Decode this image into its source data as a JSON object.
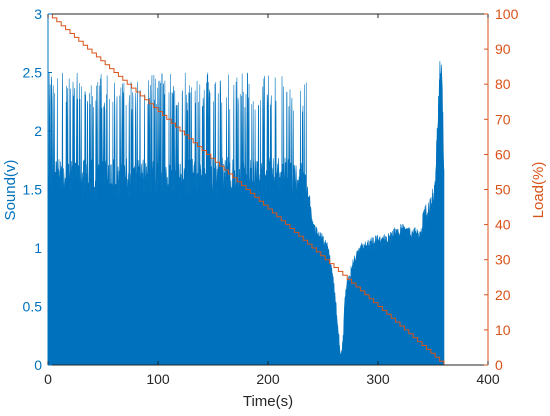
{
  "chart_data": {
    "type": "area",
    "xlabel": "Time(s)",
    "ylabel_left": "Sound(v)",
    "ylabel_right": "Load(%)",
    "xlim": [
      0,
      400
    ],
    "ylim_left": [
      0,
      3
    ],
    "ylim_right": [
      0,
      100
    ],
    "xticks": [
      "0",
      "100",
      "200",
      "300",
      "400"
    ],
    "yticks_left": [
      "0",
      "0.5",
      "1",
      "1.5",
      "2",
      "2.5",
      "3"
    ],
    "yticks_right": [
      "0",
      "10",
      "20",
      "30",
      "40",
      "50",
      "60",
      "70",
      "80",
      "90",
      "100"
    ],
    "grid": false,
    "colors": {
      "sound": "#0072BD",
      "load": "#D95319",
      "axis": "#262626"
    },
    "series": [
      {
        "axis": "left",
        "style": "filled-signal",
        "envelope": {
          "x": [
            0,
            5,
            10,
            20,
            40,
            60,
            80,
            100,
            120,
            140,
            160,
            180,
            200,
            220,
            230,
            234,
            236,
            238,
            240,
            245,
            250,
            255,
            260,
            263,
            266,
            268,
            270,
            272,
            274,
            276,
            278,
            280,
            285,
            290,
            300,
            310,
            320,
            330,
            340,
            345,
            348,
            350,
            352,
            354,
            356,
            358,
            360
          ],
          "y": [
            1.8,
            1.78,
            1.76,
            1.76,
            1.76,
            1.76,
            1.77,
            1.77,
            1.77,
            1.78,
            1.78,
            1.78,
            1.78,
            1.77,
            1.73,
            1.68,
            1.55,
            1.45,
            1.25,
            1.18,
            1.12,
            1.03,
            0.72,
            0.42,
            0.1,
            0.22,
            0.65,
            0.75,
            0.78,
            0.9,
            0.93,
            0.98,
            1.05,
            1.08,
            1.12,
            1.13,
            1.22,
            1.18,
            1.18,
            1.25,
            1.32,
            1.4,
            1.55,
            1.98,
            2.45,
            2.5,
            1.65
          ]
        },
        "peaks": {
          "x_range": [
            0,
            236
          ],
          "y_max": 2.5
        }
      },
      {
        "axis": "right",
        "style": "staircase",
        "x": [
          0,
          360
        ],
        "y": [
          100,
          0
        ],
        "step_s": 4
      }
    ]
  }
}
